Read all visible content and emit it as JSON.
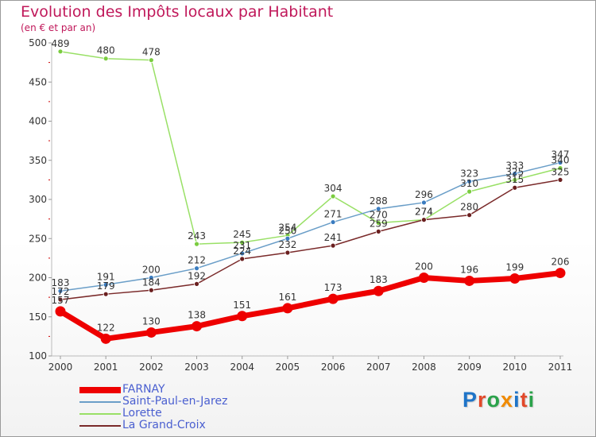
{
  "header": {
    "title": "Evolution des Impôts locaux par Habitant",
    "subtitle": "(en € et par an)"
  },
  "logo": {
    "text": "Proxiti",
    "letter_colors": [
      "#1e74c8",
      "#e2492a",
      "#2aa24a",
      "#f08a00",
      "#1e74c8",
      "#e2492a",
      "#2aa24a"
    ]
  },
  "chart_data": {
    "type": "line",
    "title": "Evolution des Impôts locaux par Habitant",
    "subtitle": "(en € et par an)",
    "xlabel": "",
    "ylabel": "",
    "x": [
      "2000",
      "2001",
      "2002",
      "2003",
      "2004",
      "2005",
      "2006",
      "2007",
      "2008",
      "2009",
      "2010",
      "2011"
    ],
    "ylim": [
      100,
      500
    ],
    "yticks": [
      100,
      150,
      200,
      250,
      300,
      350,
      400,
      450,
      500
    ],
    "grid": false,
    "legend_position": "bottom-left",
    "series": [
      {
        "name": "FARNAY",
        "color": "#ee0000",
        "thick": true,
        "values": [
          157,
          122,
          130,
          138,
          151,
          161,
          173,
          183,
          200,
          196,
          199,
          206
        ],
        "labels": [
          "157",
          "122",
          "130",
          "138",
          "151",
          "161",
          "173",
          "183",
          "200",
          "196",
          "199",
          "206"
        ]
      },
      {
        "name": "Saint-Paul-en-Jarez",
        "color": "#6a9ec8",
        "marker": "#3a7cc0",
        "values": [
          183,
          191,
          200,
          212,
          231,
          250,
          271,
          288,
          296,
          323,
          333,
          347
        ],
        "labels": [
          "183",
          "191",
          "200",
          "212",
          "231",
          "250",
          "271",
          "288",
          "296",
          "323",
          "333",
          "347"
        ]
      },
      {
        "name": "Lorette",
        "color": "#99e066",
        "marker": "#7acc3f",
        "values": [
          489,
          480,
          478,
          243,
          245,
          254,
          304,
          270,
          274,
          310,
          325,
          340
        ],
        "labels": [
          "489",
          "480",
          "478",
          "243",
          "245",
          "254",
          "304",
          "270",
          "274",
          "310",
          "325",
          "340"
        ]
      },
      {
        "name": "La Grand-Croix",
        "color": "#7a2a2a",
        "marker": "#6a1f1f",
        "values": [
          172,
          179,
          184,
          192,
          224,
          232,
          241,
          259,
          274,
          280,
          315,
          325
        ],
        "labels": [
          "172",
          "179",
          "184",
          "192",
          "224",
          "232",
          "241",
          "259",
          "274",
          "280",
          "315",
          "325"
        ]
      }
    ]
  }
}
